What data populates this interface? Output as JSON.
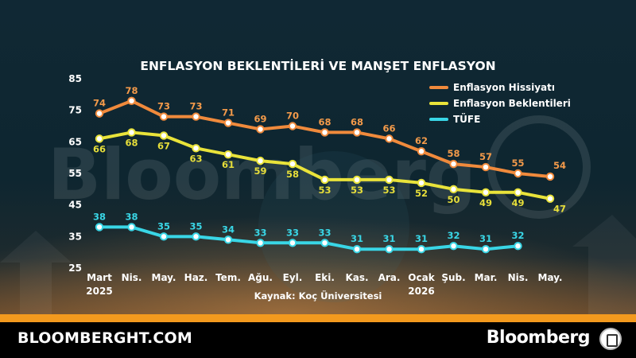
{
  "footer": {
    "site": "BLOOMBERGHT.COM",
    "logo_text": "Bloomberg"
  },
  "chart_data": {
    "type": "line",
    "title": "ENFLASYON BEKLENTİLERİ VE MANŞET ENFLASYON",
    "source": "Kaynak: Koç Üniversitesi",
    "categories": [
      "Mart",
      "Nis.",
      "May.",
      "Haz.",
      "Tem.",
      "Ağu.",
      "Eyl.",
      "Eki.",
      "Kas.",
      "Ara.",
      "Ocak",
      "Şub.",
      "Mar.",
      "Nis.",
      "May."
    ],
    "year_labels": [
      {
        "index": 0,
        "text": "2025"
      },
      {
        "index": 10,
        "text": "2026"
      }
    ],
    "ylim": [
      25,
      85
    ],
    "yticks": [
      25,
      35,
      45,
      55,
      65,
      75,
      85
    ],
    "grid": false,
    "legend_position": "top-right",
    "series": [
      {
        "name": "Enflasyon Hissiyatı",
        "color": "#f08a3c",
        "label_color": "#f39a4a",
        "values": [
          74,
          78,
          73,
          73,
          71,
          69,
          70,
          68,
          68,
          66,
          62,
          58,
          57,
          55,
          54
        ]
      },
      {
        "name": "Enflasyon Beklentileri",
        "color": "#e9e33a",
        "label_color": "#e6de3a",
        "values": [
          66,
          68,
          67,
          63,
          61,
          59,
          58,
          53,
          53,
          53,
          52,
          50,
          49,
          49,
          47
        ]
      },
      {
        "name": "TÜFE",
        "color": "#39d6e6",
        "label_color": "#39d6e6",
        "values": [
          38,
          38,
          35,
          35,
          34,
          33,
          33,
          33,
          31,
          31,
          31,
          32,
          31,
          32,
          null
        ]
      }
    ]
  }
}
